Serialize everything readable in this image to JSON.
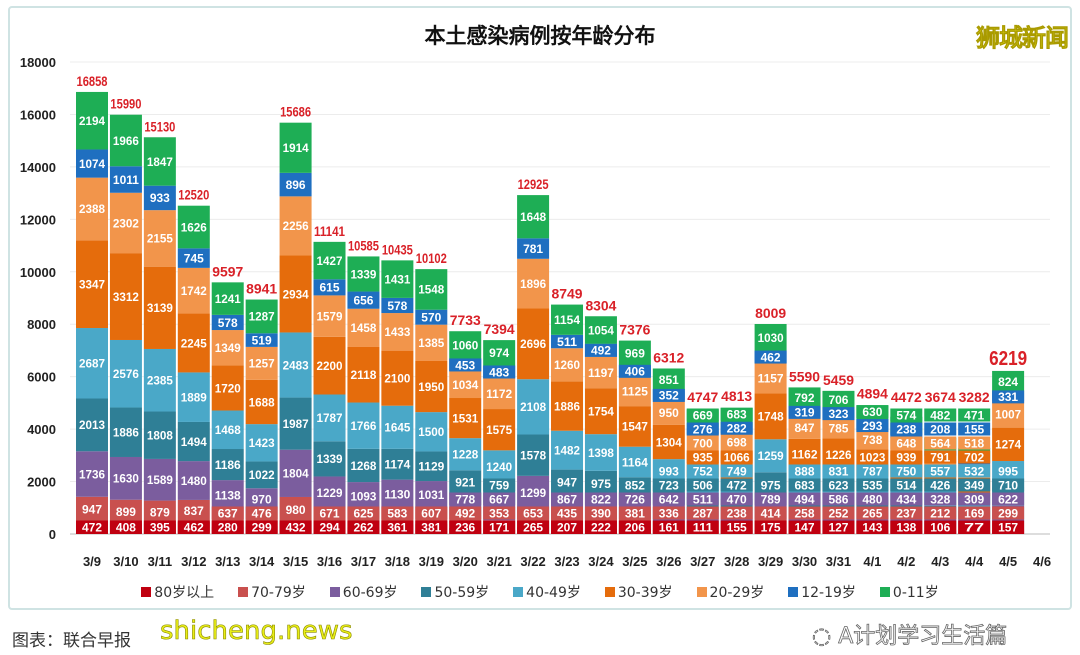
{
  "chart_data": {
    "type": "bar",
    "stacked": true,
    "title": "本土感染病例按年龄分布",
    "xlabel": "",
    "ylabel": "",
    "ylim": [
      0,
      18000
    ],
    "yticks": [
      0,
      2000,
      4000,
      6000,
      8000,
      10000,
      12000,
      14000,
      16000,
      18000
    ],
    "grid": true,
    "legend_position": "bottom",
    "categories": [
      "3/9",
      "3/10",
      "3/11",
      "3/12",
      "3/13",
      "3/14",
      "3/15",
      "3/16",
      "3/17",
      "3/18",
      "3/19",
      "3/20",
      "3/21",
      "3/22",
      "3/23",
      "3/24",
      "3/25",
      "3/26",
      "3/27",
      "3/28",
      "3/29",
      "3/30",
      "3/31",
      "4/1",
      "4/2",
      "4/3",
      "4/4",
      "4/5",
      "4/6"
    ],
    "totals": [
      16858,
      15990,
      15130,
      12520,
      9597,
      8941,
      15686,
      11141,
      10585,
      10435,
      10102,
      7733,
      7394,
      12925,
      8749,
      8304,
      7376,
      6312,
      4747,
      4813,
      8009,
      5590,
      5459,
      4894,
      4472,
      3674,
      3282,
      6219,
      null
    ],
    "series": [
      {
        "name": "80岁以上",
        "color": "#c00010",
        "values": [
          472,
          408,
          395,
          462,
          280,
          299,
          432,
          294,
          262,
          361,
          381,
          236,
          171,
          265,
          207,
          222,
          206,
          161,
          111,
          155,
          175,
          147,
          127,
          143,
          138,
          106,
          77,
          157,
          null
        ]
      },
      {
        "name": "70-79岁",
        "color": "#c9504e",
        "values": [
          947,
          899,
          879,
          837,
          637,
          476,
          980,
          671,
          625,
          583,
          607,
          492,
          353,
          653,
          435,
          390,
          381,
          336,
          287,
          238,
          414,
          258,
          252,
          265,
          237,
          212,
          169,
          299,
          null
        ]
      },
      {
        "name": "60-69岁",
        "color": "#7b5d9e",
        "values": [
          1736,
          1630,
          1589,
          1480,
          1138,
          970,
          1804,
          1229,
          1093,
          1130,
          1031,
          778,
          667,
          1299,
          867,
          822,
          726,
          642,
          511,
          470,
          789,
          494,
          586,
          480,
          434,
          328,
          309,
          622,
          null
        ]
      },
      {
        "name": "50-59岁",
        "color": "#2f7f96",
        "values": [
          2013,
          1886,
          1808,
          1494,
          1186,
          1022,
          1987,
          1339,
          1268,
          1174,
          1129,
          921,
          759,
          1578,
          947,
          975,
          852,
          723,
          506,
          472,
          975,
          683,
          623,
          535,
          514,
          426,
          349,
          710,
          null
        ]
      },
      {
        "name": "40-49岁",
        "color": "#4aa8c8",
        "values": [
          2687,
          2576,
          2385,
          1889,
          1468,
          1423,
          2483,
          1787,
          1766,
          1645,
          1500,
          1228,
          1240,
          2108,
          1482,
          1398,
          1164,
          993,
          752,
          749,
          1259,
          888,
          831,
          787,
          750,
          557,
          532,
          995,
          null
        ]
      },
      {
        "name": "30-39岁",
        "color": "#e56c0c",
        "values": [
          3347,
          3312,
          3139,
          2245,
          1720,
          1688,
          2934,
          2200,
          2118,
          2100,
          1950,
          1531,
          1575,
          2696,
          1886,
          1754,
          1547,
          1304,
          935,
          1066,
          1748,
          1162,
          1226,
          1023,
          939,
          791,
          702,
          1274,
          null
        ]
      },
      {
        "name": "20-29岁",
        "color": "#f2954b",
        "values": [
          2388,
          2302,
          2155,
          1742,
          1349,
          1257,
          2256,
          1579,
          1458,
          1433,
          1385,
          1034,
          1172,
          1896,
          1260,
          1197,
          1125,
          950,
          700,
          698,
          1157,
          847,
          785,
          738,
          648,
          564,
          518,
          1007,
          null
        ]
      },
      {
        "name": "12-19岁",
        "color": "#1f6fc0",
        "values": [
          1074,
          1011,
          933,
          745,
          578,
          519,
          896,
          615,
          656,
          578,
          570,
          453,
          483,
          781,
          511,
          492,
          406,
          352,
          276,
          282,
          462,
          319,
          323,
          293,
          238,
          208,
          155,
          331,
          null
        ]
      },
      {
        "name": "0-11岁",
        "color": "#1eae55",
        "values": [
          2194,
          1966,
          1847,
          1626,
          1241,
          1287,
          1914,
          1427,
          1339,
          1431,
          1548,
          1060,
          974,
          1648,
          1154,
          1054,
          969,
          851,
          669,
          683,
          1030,
          792,
          706,
          630,
          574,
          482,
          471,
          824,
          null
        ]
      }
    ]
  },
  "colors": {
    "total_label": "#d92128",
    "segment_label": "#ffffff",
    "grid": "#ececec"
  },
  "watermarks": {
    "logo": "狮城新闻",
    "site": "shicheng.news",
    "wechat": "A计划学习生活篇",
    "source": "图表：联合早报"
  }
}
